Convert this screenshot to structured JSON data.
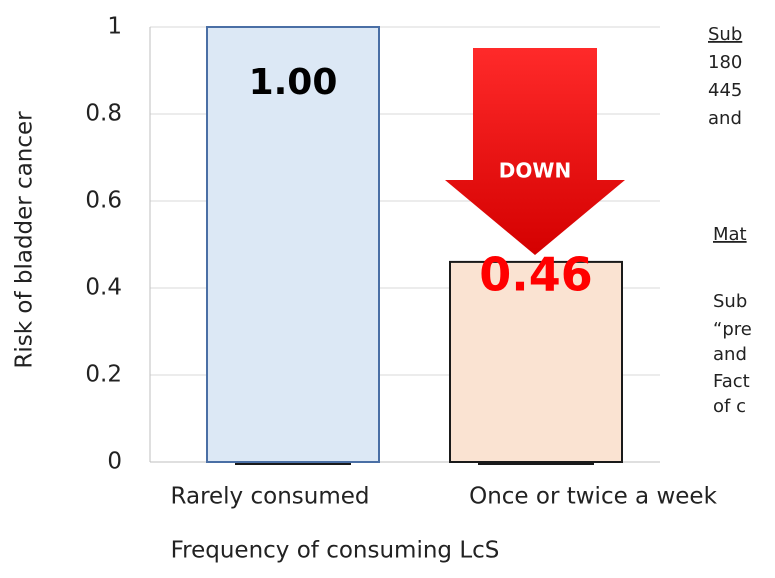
{
  "chart_data": {
    "type": "bar",
    "categories": [
      "Rarely consumed",
      "Once or twice a week"
    ],
    "values": [
      1.0,
      0.46
    ],
    "value_labels": [
      "1.00",
      "0.46"
    ],
    "value_label_colors": [
      "#000000",
      "#ff0000"
    ],
    "colors": [
      "#dce8f5",
      "#fae3d2"
    ],
    "edgecolors": [
      "#4a6fa5",
      "#1a1a1a"
    ],
    "ylim": [
      0,
      1
    ],
    "yticks": [
      0,
      0.2,
      0.4,
      0.6,
      0.8,
      1
    ],
    "grid": true,
    "x_label": "Frequency of consuming LcS",
    "y_label": "Risk of bladder cancer",
    "annotation": "DOWN",
    "side_notes": [
      {
        "text": "Sub",
        "underline": true
      },
      {
        "text": "180",
        "underline": false
      },
      {
        "text": "445",
        "underline": false
      },
      {
        "text": "and",
        "underline": false
      },
      {
        "text": "Mat",
        "underline": true
      },
      {
        "text": "Sub",
        "underline": false
      },
      {
        "text": "“pre",
        "underline": false
      },
      {
        "text": "and",
        "underline": false
      },
      {
        "text": "Fact",
        "underline": false
      },
      {
        "text": "of c",
        "underline": false
      }
    ]
  }
}
